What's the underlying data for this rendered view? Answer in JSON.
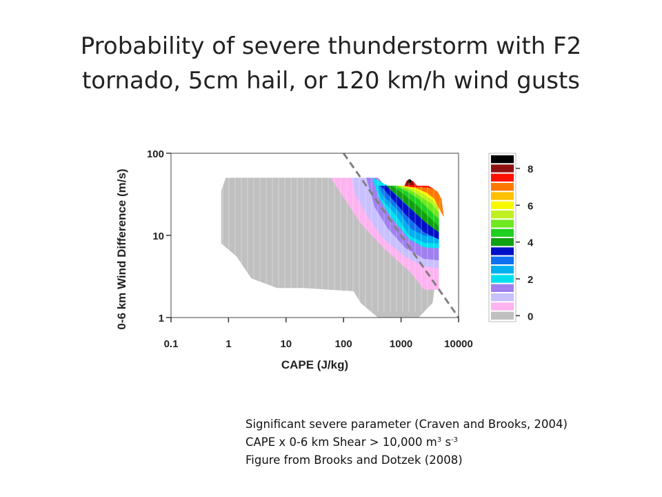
{
  "title": {
    "line1": "Probability of severe thunderstorm with F2",
    "line2": "tornado, 5cm hail, or 120 km/h wind gusts"
  },
  "caption": {
    "line1": "Significant severe parameter (Craven and Brooks, 2004)",
    "line2_prefix": "CAPE x 0-6 km Shear > 10,000 m",
    "line2_sup1": "3",
    "line2_mid": " s",
    "line2_sup2": "-3",
    "line3": "Figure from Brooks and Dotzek (2008)"
  },
  "chart_data": {
    "type": "heatmap",
    "xlabel": "CAPE (J/kg)",
    "ylabel": "0-6 km Wind Difference (m/s)",
    "xscale": "log",
    "yscale": "log",
    "xlim": [
      0.1,
      10000
    ],
    "ylim": [
      1,
      100
    ],
    "xticks": [
      {
        "value": 0.1,
        "label": "0.1"
      },
      {
        "value": 1,
        "label": "1"
      },
      {
        "value": 10,
        "label": "10"
      },
      {
        "value": 100,
        "label": "100"
      },
      {
        "value": 1000,
        "label": "1000"
      },
      {
        "value": 10000,
        "label": "10000"
      }
    ],
    "yticks": [
      {
        "value": 1,
        "label": "1"
      },
      {
        "value": 10,
        "label": "10"
      },
      {
        "value": 100,
        "label": "100"
      }
    ],
    "colorbar": {
      "ticks": [
        {
          "value": 0,
          "label": "0"
        },
        {
          "value": 2,
          "label": "2"
        },
        {
          "value": 4,
          "label": "4"
        },
        {
          "value": 6,
          "label": "6"
        },
        {
          "value": 8,
          "label": "8"
        }
      ],
      "levels": [
        {
          "value": 0,
          "color": "#c0c0c0"
        },
        {
          "value": 0.5,
          "color": "#ffb3f0"
        },
        {
          "value": 1,
          "color": "#c8c0ff"
        },
        {
          "value": 1.5,
          "color": "#a080f0"
        },
        {
          "value": 2,
          "color": "#00e0f0"
        },
        {
          "value": 2.5,
          "color": "#00b0f0"
        },
        {
          "value": 3,
          "color": "#1070f0"
        },
        {
          "value": 3.5,
          "color": "#0010c8"
        },
        {
          "value": 4,
          "color": "#10a010"
        },
        {
          "value": 4.5,
          "color": "#20d020"
        },
        {
          "value": 5,
          "color": "#70e820"
        },
        {
          "value": 5.5,
          "color": "#c0f020"
        },
        {
          "value": 6,
          "color": "#f8f800"
        },
        {
          "value": 6.5,
          "color": "#ffc000"
        },
        {
          "value": 7,
          "color": "#ff7800"
        },
        {
          "value": 7.5,
          "color": "#ff1000"
        },
        {
          "value": 8,
          "color": "#901010"
        },
        {
          "value": 8.5,
          "color": "#000000"
        }
      ]
    },
    "regions": [
      {
        "level": 0,
        "color": "#c0c0c0",
        "polygon": [
          [
            0.9,
            50
          ],
          [
            60,
            50
          ],
          [
            200,
            28
          ],
          [
            450,
            16
          ],
          [
            1500,
            5
          ],
          [
            4000,
            2.8
          ],
          [
            3500,
            1.5
          ],
          [
            2000,
            1
          ],
          [
            400,
            1
          ],
          [
            200,
            1.5
          ],
          [
            150,
            2.1
          ],
          [
            20,
            2.3
          ],
          [
            7,
            2.3
          ],
          [
            2.5,
            3
          ],
          [
            1.4,
            5.5
          ],
          [
            0.75,
            8
          ],
          [
            0.75,
            35
          ]
        ]
      },
      {
        "level": 0.5,
        "color": "#ffb3f0",
        "polygon": [
          [
            60,
            50
          ],
          [
            150,
            50
          ],
          [
            700,
            20
          ],
          [
            4500,
            6
          ],
          [
            4500,
            2.2
          ],
          [
            2500,
            2.2
          ],
          [
            1500,
            3.5
          ],
          [
            500,
            7
          ],
          [
            200,
            14
          ]
        ]
      },
      {
        "level": 1,
        "color": "#c8c0ff",
        "polygon": [
          [
            140,
            50
          ],
          [
            300,
            50
          ],
          [
            1000,
            20
          ],
          [
            4500,
            8
          ],
          [
            4500,
            4
          ],
          [
            2500,
            4.2
          ],
          [
            1200,
            5.5
          ],
          [
            500,
            9
          ],
          [
            250,
            18
          ],
          [
            160,
            32
          ]
        ]
      },
      {
        "level": 1.5,
        "color": "#a080f0",
        "polygon": [
          [
            250,
            50
          ],
          [
            400,
            50
          ],
          [
            1200,
            20
          ],
          [
            4500,
            10
          ],
          [
            4500,
            5
          ],
          [
            2500,
            5.2
          ],
          [
            1200,
            7
          ],
          [
            600,
            12
          ],
          [
            350,
            22
          ]
        ]
      },
      {
        "level": 2,
        "color": "#00e0f0",
        "polygon": [
          [
            320,
            50
          ],
          [
            600,
            40
          ],
          [
            1500,
            22
          ],
          [
            4500,
            11
          ],
          [
            4500,
            7
          ],
          [
            2500,
            7.2
          ],
          [
            1400,
            9
          ],
          [
            700,
            16
          ],
          [
            420,
            28
          ]
        ]
      },
      {
        "level": 2.5,
        "color": "#00b0f0",
        "polygon": [
          [
            380,
            40
          ],
          [
            700,
            40
          ],
          [
            1800,
            22
          ],
          [
            4500,
            13
          ],
          [
            4500,
            8
          ],
          [
            2500,
            8.2
          ],
          [
            1400,
            10
          ],
          [
            800,
            18
          ],
          [
            450,
            28
          ]
        ]
      },
      {
        "level": 3,
        "color": "#1070f0",
        "polygon": [
          [
            420,
            40
          ],
          [
            800,
            40
          ],
          [
            2000,
            23
          ],
          [
            4500,
            14
          ],
          [
            4500,
            9.5
          ],
          [
            2500,
            10
          ],
          [
            1500,
            12
          ],
          [
            900,
            20
          ],
          [
            500,
            30
          ]
        ]
      },
      {
        "level": 3.5,
        "color": "#0010c8",
        "polygon": [
          [
            450,
            40
          ],
          [
            550,
            40
          ],
          [
            1100,
            25
          ],
          [
            2500,
            15
          ],
          [
            4500,
            11
          ],
          [
            4500,
            9
          ],
          [
            2500,
            11
          ],
          [
            1200,
            18
          ],
          [
            700,
            28
          ]
        ]
      },
      {
        "level": 4,
        "color": "#10a010",
        "polygon": [
          [
            560,
            40
          ],
          [
            900,
            40
          ],
          [
            2500,
            25
          ],
          [
            4500,
            16
          ],
          [
            4500,
            11
          ],
          [
            2800,
            14
          ],
          [
            1400,
            22
          ],
          [
            800,
            32
          ]
        ]
      },
      {
        "level": 4.5,
        "color": "#20d020",
        "polygon": [
          [
            700,
            40
          ],
          [
            1000,
            40
          ],
          [
            2500,
            28
          ],
          [
            4500,
            19
          ],
          [
            4500,
            13
          ],
          [
            3000,
            17
          ],
          [
            1800,
            24
          ],
          [
            1100,
            32
          ]
        ]
      },
      {
        "level": 5,
        "color": "#70e820",
        "polygon": [
          [
            800,
            40
          ],
          [
            1100,
            40
          ],
          [
            2500,
            32
          ],
          [
            4500,
            22
          ],
          [
            4500,
            16
          ],
          [
            3000,
            21
          ],
          [
            2000,
            28
          ],
          [
            1300,
            34
          ]
        ]
      },
      {
        "level": 5.5,
        "color": "#c0f020",
        "polygon": [
          [
            900,
            40
          ],
          [
            1200,
            40
          ],
          [
            3000,
            33
          ],
          [
            4500,
            26
          ],
          [
            4500,
            19
          ],
          [
            3500,
            24
          ],
          [
            2000,
            31
          ],
          [
            1400,
            36
          ]
        ]
      },
      {
        "level": 6,
        "color": "#f8f800",
        "polygon": [
          [
            1000,
            40
          ],
          [
            1400,
            40
          ],
          [
            3200,
            34
          ],
          [
            4800,
            28
          ],
          [
            4800,
            22
          ],
          [
            3500,
            27
          ],
          [
            2300,
            33
          ],
          [
            1600,
            37
          ]
        ]
      },
      {
        "level": 6.5,
        "color": "#ffc000",
        "polygon": [
          [
            1100,
            40
          ],
          [
            1500,
            40
          ],
          [
            3500,
            36
          ],
          [
            5000,
            28
          ],
          [
            5000,
            24
          ],
          [
            3800,
            30
          ],
          [
            2600,
            35
          ],
          [
            1800,
            38
          ]
        ]
      },
      {
        "level": 7,
        "color": "#ff7800",
        "polygon": [
          [
            1200,
            40
          ],
          [
            3000,
            40
          ],
          [
            4300,
            34
          ],
          [
            5000,
            28
          ],
          [
            5500,
            17
          ],
          [
            4500,
            22
          ],
          [
            3800,
            28
          ],
          [
            2800,
            33
          ],
          [
            1800,
            38
          ]
        ]
      },
      {
        "level": 7.5,
        "color": "#ff1000",
        "polygon": [
          [
            1150,
            40
          ],
          [
            1250,
            46
          ],
          [
            1600,
            46
          ],
          [
            1900,
            40
          ],
          [
            3000,
            40
          ],
          [
            3800,
            36
          ],
          [
            3200,
            38
          ],
          [
            2200,
            39
          ],
          [
            1500,
            39
          ]
        ]
      },
      {
        "level": 8,
        "color": "#901010",
        "polygon": [
          [
            1200,
            41
          ],
          [
            1300,
            47
          ],
          [
            1500,
            47
          ],
          [
            1700,
            41
          ]
        ]
      },
      {
        "level": 8.5,
        "color": "#000000",
        "polygon": [
          [
            1300,
            44
          ],
          [
            1350,
            48
          ],
          [
            1450,
            48
          ],
          [
            1500,
            44
          ]
        ]
      }
    ],
    "threshold_line": {
      "style": "dashed",
      "color": "#808080",
      "x": [
        100,
        10000
      ],
      "y": [
        100,
        1
      ]
    }
  }
}
